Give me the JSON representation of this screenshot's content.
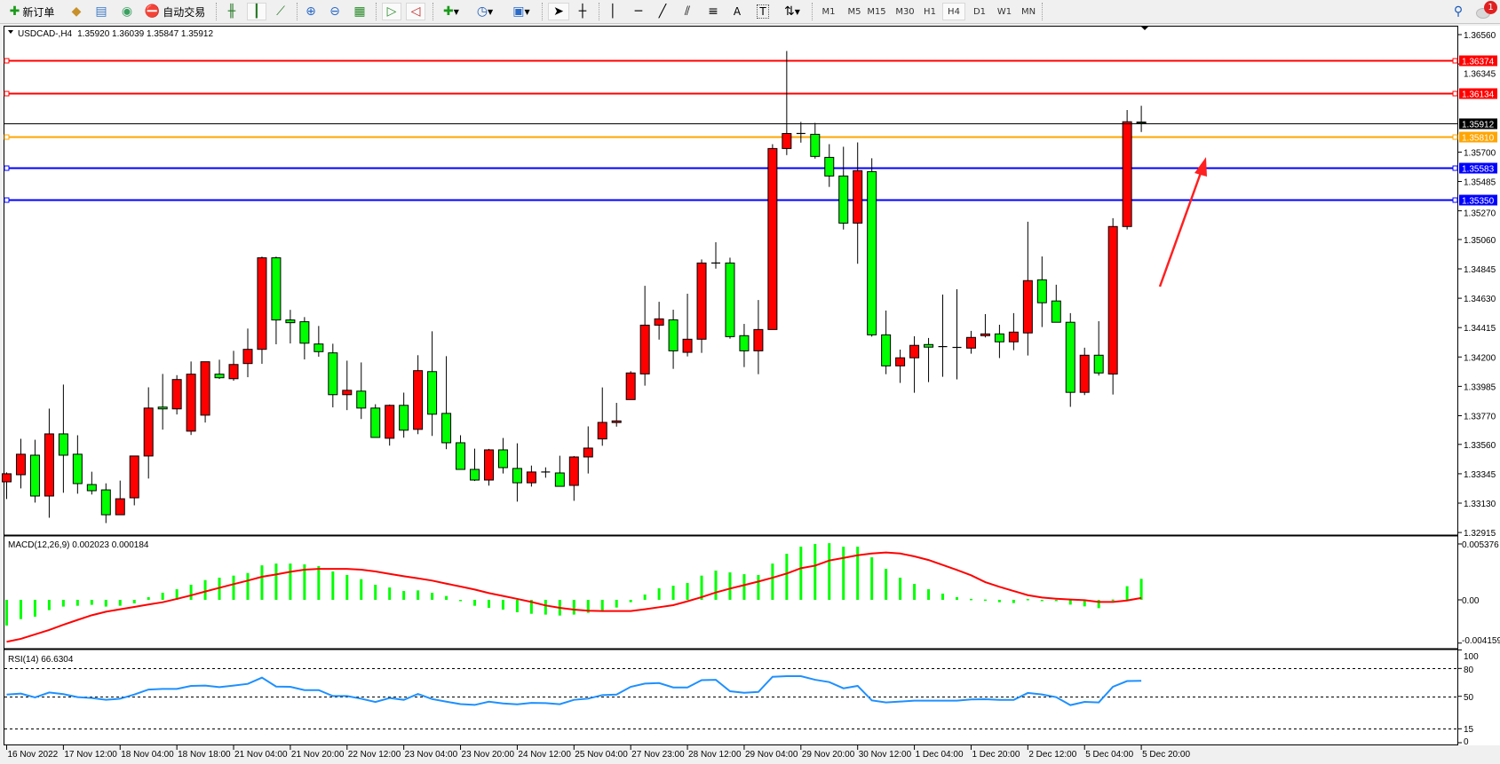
{
  "toolbar": {
    "new_order_label": "新订单",
    "auto_trading_label": "自动交易",
    "timeframes": [
      "M1",
      "M5",
      "M15",
      "M30",
      "H1",
      "H4",
      "D1",
      "W1",
      "MN"
    ],
    "active_timeframe": "H4",
    "notification_count": "1"
  },
  "chart_header": {
    "symbol": "USDCAD-,H4",
    "ohlc": "1.35920 1.36039 1.35847 1.35912"
  },
  "macd": {
    "label": "MACD(12,26,9) 0.002023 0.000184",
    "axis": [
      "0.005376",
      "0.00",
      "-0.004159"
    ]
  },
  "rsi": {
    "label": "RSI(14) 66.6304",
    "axis": [
      "100",
      "80",
      "50",
      "15",
      "0"
    ]
  },
  "colors": {
    "bull": "#ff0000",
    "bear": "#00ff00",
    "macd_hist": "#00ff00",
    "macd_signal": "#ff0000",
    "rsi": "#1e90ff",
    "arrow": "#ff2020"
  },
  "chart_data": {
    "type": "candlestick",
    "title": "USDCAD-,H4",
    "ylim": [
      1.32915,
      1.3656
    ],
    "price_axis": [
      "1.36560",
      "1.36345",
      "1.35700",
      "1.35485",
      "1.35270",
      "1.35060",
      "1.34845",
      "1.34630",
      "1.34415",
      "1.34200",
      "1.33985",
      "1.33770",
      "1.33560",
      "1.33345",
      "1.33130",
      "1.32915"
    ],
    "time_axis": [
      "16 Nov 2022",
      "17 Nov 12:00",
      "18 Nov 04:00",
      "18 Nov 18:00",
      "21 Nov 04:00",
      "21 Nov 20:00",
      "22 Nov 12:00",
      "23 Nov 04:00",
      "23 Nov 20:00",
      "24 Nov 12:00",
      "25 Nov 04:00",
      "27 Nov 23:00",
      "28 Nov 12:00",
      "29 Nov 04:00",
      "29 Nov 20:00",
      "30 Nov 12:00",
      "1 Dec 04:00",
      "1 Dec 20:00",
      "2 Dec 12:00",
      "5 Dec 04:00",
      "5 Dec 20:00"
    ],
    "current_price": "1.35912",
    "levels": [
      {
        "price": "1.36374",
        "color": "#ff0000"
      },
      {
        "price": "1.36134",
        "color": "#ff0000"
      },
      {
        "price": "1.35810",
        "color": "#ffa500"
      },
      {
        "price": "1.35583",
        "color": "#0000ff"
      },
      {
        "price": "1.35350",
        "color": "#0000ff"
      }
    ],
    "ohlc": [
      [
        1.33286,
        1.33355,
        1.3316,
        1.33345
      ],
      [
        1.33338,
        1.33601,
        1.33238,
        1.33488
      ],
      [
        1.33481,
        1.33594,
        1.33134,
        1.33182
      ],
      [
        1.33182,
        1.33822,
        1.33023,
        1.33637
      ],
      [
        1.33637,
        1.33998,
        1.33206,
        1.33481
      ],
      [
        1.33488,
        1.33627,
        1.33199,
        1.33273
      ],
      [
        1.33266,
        1.3336,
        1.33193,
        1.33221
      ],
      [
        1.33227,
        1.33275,
        1.32984,
        1.33045
      ],
      [
        1.33045,
        1.33295,
        1.33045,
        1.33162
      ],
      [
        1.33169,
        1.33475,
        1.33114,
        1.33475
      ],
      [
        1.33475,
        1.33978,
        1.3331,
        1.33826
      ],
      [
        1.33833,
        1.34076,
        1.33668,
        1.3382
      ],
      [
        1.3382,
        1.34067,
        1.33779,
        1.34035
      ],
      [
        1.33657,
        1.34167,
        1.33629,
        1.34074
      ],
      [
        1.33774,
        1.34165,
        1.3372,
        1.34165
      ],
      [
        1.34074,
        1.3418,
        1.34039,
        1.34048
      ],
      [
        1.34041,
        1.34245,
        1.34026,
        1.34145
      ],
      [
        1.34152,
        1.34408,
        1.34052,
        1.34256
      ],
      [
        1.34256,
        1.34935,
        1.3415,
        1.34926
      ],
      [
        1.34926,
        1.34935,
        1.34293,
        1.34471
      ],
      [
        1.34471,
        1.34545,
        1.34299,
        1.34451
      ],
      [
        1.34458,
        1.34492,
        1.34182,
        1.34301
      ],
      [
        1.34295,
        1.34427,
        1.34202,
        1.34239
      ],
      [
        1.3423,
        1.34297,
        1.33831,
        1.33924
      ],
      [
        1.33924,
        1.34173,
        1.33811,
        1.33956
      ],
      [
        1.3395,
        1.3416,
        1.33746,
        1.33826
      ],
      [
        1.33826,
        1.33854,
        1.33611,
        1.33611
      ],
      [
        1.33605,
        1.33852,
        1.33551,
        1.33846
      ],
      [
        1.33846,
        1.33939,
        1.33609,
        1.33664
      ],
      [
        1.3367,
        1.34213,
        1.33635,
        1.341
      ],
      [
        1.34093,
        1.34388,
        1.33622,
        1.33781
      ],
      [
        1.33787,
        1.34206,
        1.33525,
        1.33572
      ],
      [
        1.33572,
        1.33627,
        1.33377,
        1.33377
      ],
      [
        1.33377,
        1.33529,
        1.33292,
        1.33299
      ],
      [
        1.33299,
        1.33527,
        1.33258,
        1.3352
      ],
      [
        1.3352,
        1.33607,
        1.33347,
        1.3339
      ],
      [
        1.33384,
        1.33568,
        1.33141,
        1.33279
      ],
      [
        1.33279,
        1.33405,
        1.33251,
        1.33358
      ],
      [
        1.33358,
        1.33392,
        1.33316,
        1.33358
      ],
      [
        1.33351,
        1.33477,
        1.33253,
        1.33253
      ],
      [
        1.3326,
        1.33475,
        1.33147,
        1.33468
      ],
      [
        1.33468,
        1.33692,
        1.33347,
        1.33533
      ],
      [
        1.336,
        1.33977,
        1.3355,
        1.33721
      ],
      [
        1.3372,
        1.33864,
        1.3369,
        1.33732
      ],
      [
        1.33888,
        1.34096,
        1.33888,
        1.34083
      ],
      [
        1.34076,
        1.34721,
        1.3399,
        1.34433
      ],
      [
        1.34433,
        1.34604,
        1.34327,
        1.34479
      ],
      [
        1.34472,
        1.34546,
        1.34113,
        1.34245
      ],
      [
        1.34234,
        1.34663,
        1.34204,
        1.3433
      ],
      [
        1.3433,
        1.34914,
        1.3423,
        1.34888
      ],
      [
        1.34888,
        1.3504,
        1.34847,
        1.34888
      ],
      [
        1.34888,
        1.34927,
        1.34334,
        1.34349
      ],
      [
        1.34356,
        1.34442,
        1.34126,
        1.34245
      ],
      [
        1.34245,
        1.34617,
        1.34074,
        1.34401
      ],
      [
        1.34401,
        1.35758,
        1.34401,
        1.35726
      ],
      [
        1.35726,
        1.3644,
        1.35678,
        1.35836
      ],
      [
        1.35836,
        1.35921,
        1.35769,
        1.35836
      ],
      [
        1.3583,
        1.35914,
        1.35652,
        1.35668
      ],
      [
        1.35661,
        1.35758,
        1.35445,
        1.35525
      ],
      [
        1.35525,
        1.35739,
        1.35133,
        1.3518
      ],
      [
        1.3518,
        1.35771,
        1.34882,
        1.35564
      ],
      [
        1.35557,
        1.35655,
        1.34349,
        1.34362
      ],
      [
        1.34362,
        1.3454,
        1.34074,
        1.34135
      ],
      [
        1.34135,
        1.34254,
        1.3401,
        1.34194
      ],
      [
        1.34194,
        1.34352,
        1.33938,
        1.34285
      ],
      [
        1.34291,
        1.34339,
        1.34016,
        1.34272
      ],
      [
        1.34276,
        1.34657,
        1.34055,
        1.34276
      ],
      [
        1.3427,
        1.34696,
        1.34036,
        1.3427
      ],
      [
        1.34265,
        1.34391,
        1.34224,
        1.34343
      ],
      [
        1.34356,
        1.34514,
        1.34343,
        1.34369
      ],
      [
        1.34369,
        1.34436,
        1.34192,
        1.34311
      ],
      [
        1.34311,
        1.34521,
        1.3425,
        1.34382
      ],
      [
        1.34376,
        1.3519,
        1.34211,
        1.34759
      ],
      [
        1.34765,
        1.34936,
        1.34419,
        1.34597
      ],
      [
        1.3461,
        1.34729,
        1.34454,
        1.34454
      ],
      [
        1.34454,
        1.34521,
        1.33835,
        1.33941
      ],
      [
        1.33941,
        1.34268,
        1.33921,
        1.34213
      ],
      [
        1.34213,
        1.34462,
        1.34064,
        1.34083
      ],
      [
        1.34075,
        1.35216,
        1.33925,
        1.35155
      ],
      [
        1.35155,
        1.36008,
        1.35133,
        1.35922
      ],
      [
        1.3592,
        1.36039,
        1.35847,
        1.35912
      ]
    ],
    "macd_ylim": [
      -0.004159,
      0.005376
    ],
    "macd_hist": [
      -0.00247,
      -0.00185,
      -0.00162,
      -0.00099,
      -0.00065,
      -0.00057,
      -0.00048,
      -0.00065,
      -0.00057,
      -0.00034,
      0.00026,
      0.00068,
      0.00102,
      0.00145,
      0.0019,
      0.00213,
      0.00233,
      0.00258,
      0.00332,
      0.00349,
      0.00349,
      0.00341,
      0.00324,
      0.00273,
      0.00239,
      0.00199,
      0.00145,
      0.00119,
      0.00085,
      0.00091,
      0.00068,
      0.00037,
      -6e-05,
      -0.00057,
      -0.00077,
      -0.00094,
      -0.00119,
      -0.00134,
      -0.00142,
      -0.00151,
      -0.00142,
      -0.00125,
      -0.00102,
      -0.00074,
      -0.00023,
      0.00051,
      0.00111,
      0.00136,
      0.00162,
      0.00233,
      0.00281,
      0.00264,
      0.00247,
      0.00239,
      0.00349,
      0.00443,
      0.00511,
      0.00537,
      0.00545,
      0.00511,
      0.00511,
      0.00409,
      0.00298,
      0.00213,
      0.00153,
      0.00102,
      0.0006,
      0.00026,
      9e-05,
      3e-05,
      -0.00023,
      -0.00031,
      8e-05,
      0,
      0,
      -0.00046,
      -0.00063,
      -0.0008,
      3e-05,
      0.00131,
      0.002023
    ],
    "macd_signal": [
      -0.00403,
      -0.00375,
      -0.00332,
      -0.0029,
      -0.00239,
      -0.00193,
      -0.00148,
      -0.00114,
      -0.00091,
      -0.00068,
      -0.00045,
      -0.00023,
      9e-05,
      0.00043,
      0.0008,
      0.00116,
      0.00151,
      0.00185,
      0.00222,
      0.00244,
      0.0027,
      0.0029,
      0.00298,
      0.00298,
      0.00298,
      0.0029,
      0.00273,
      0.0025,
      0.00227,
      0.00207,
      0.00185,
      0.00156,
      0.00128,
      0.00099,
      0.00065,
      0.00037,
      9e-05,
      -0.0002,
      -0.00054,
      -0.00077,
      -0.00094,
      -0.00105,
      -0.00108,
      -0.00108,
      -0.00108,
      -0.00091,
      -0.00071,
      -0.00051,
      -0.00014,
      0.00026,
      0.00071,
      0.00108,
      0.00142,
      0.00176,
      0.00213,
      0.00253,
      0.00304,
      0.00329,
      0.00378,
      0.00403,
      0.00429,
      0.00446,
      0.00455,
      0.00446,
      0.00418,
      0.00383,
      0.00335,
      0.00287,
      0.00236,
      0.0017,
      0.00125,
      0.00085,
      0.00045,
      0.00022,
      0.00011,
      3e-05,
      -3e-05,
      -0.0002,
      -0.0002,
      -6e-05,
      0.000184
    ],
    "rsi_levels": [
      80,
      50,
      15
    ],
    "rsi": [
      51.9,
      52.9,
      48.8,
      54.1,
      52.3,
      49.1,
      48.1,
      46.2,
      47.4,
      51.9,
      57.3,
      58,
      58,
      61.2,
      61.5,
      59.9,
      61.5,
      63.4,
      70.1,
      60.5,
      60.2,
      56.7,
      56.7,
      50.3,
      50.3,
      47.4,
      43.9,
      48.1,
      46.2,
      52.5,
      47,
      44.2,
      41.6,
      40.7,
      44.2,
      42.3,
      41.3,
      42.9,
      42.7,
      41.5,
      46.2,
      47.5,
      51.3,
      51.9,
      60.2,
      63.7,
      64.3,
      59.5,
      59.5,
      67.4,
      67.8,
      55.4,
      53.8,
      54.7,
      71,
      71.7,
      71.7,
      67.8,
      65.3,
      58.6,
      61.2,
      45.6,
      43.4,
      44.3,
      45.3,
      45.3,
      45.3,
      45.3,
      46.6,
      46.9,
      46.1,
      46.1,
      53.6,
      52,
      49.1,
      40.5,
      44,
      43.4,
      60.3,
      66.4,
      66.63
    ]
  }
}
